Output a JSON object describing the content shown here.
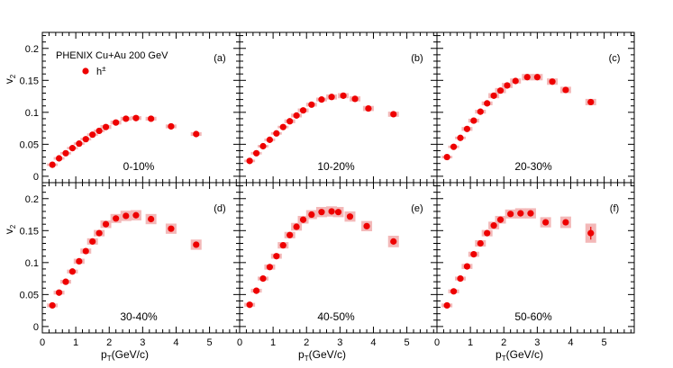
{
  "chart_data": {
    "type": "scatter",
    "title": "PHENIX Cu+Au 200 GeV",
    "legend": {
      "marker_label": "h",
      "marker_label_sup": "±",
      "placement": "top-left of panel (a)"
    },
    "xlabel": {
      "main": "p",
      "sub": "T",
      "rest": "(GeV/c)"
    },
    "ylabel": {
      "main": "v",
      "sub": "2"
    },
    "xlim": [
      0,
      5.9
    ],
    "ylim": [
      -0.01,
      0.225
    ],
    "x_ticks": [
      0,
      1,
      2,
      3,
      4,
      5
    ],
    "x_tick_labels": [
      "0",
      "1",
      "2",
      "3",
      "4",
      "5"
    ],
    "y_ticks": [
      0,
      0.05,
      0.1,
      0.15,
      0.2
    ],
    "y_tick_labels": [
      "0",
      "0.05",
      "0.1",
      "0.15",
      "0.2"
    ],
    "grid": false,
    "colors": {
      "marker": "#ee0000",
      "syst_box": "#f3b8b8",
      "frame": "#000000"
    },
    "x": [
      0.3,
      0.5,
      0.7,
      0.9,
      1.1,
      1.3,
      1.5,
      1.7,
      1.9,
      2.2,
      2.5,
      2.8,
      3.25,
      3.85,
      4.6
    ],
    "panels": [
      {
        "tag": "(a)",
        "centrality": "0-10%",
        "values": [
          0.018,
          0.028,
          0.036,
          0.044,
          0.051,
          0.058,
          0.065,
          0.071,
          0.077,
          0.084,
          0.09,
          0.091,
          0.09,
          0.078,
          0.066
        ],
        "syst": [
          0.002,
          0.002,
          0.002,
          0.002,
          0.002,
          0.002,
          0.002,
          0.002,
          0.003,
          0.003,
          0.003,
          0.003,
          0.003,
          0.003,
          0.003
        ]
      },
      {
        "tag": "(b)",
        "centrality": "10-20%",
        "values": [
          0.024,
          0.036,
          0.047,
          0.057,
          0.067,
          0.077,
          0.086,
          0.095,
          0.103,
          0.112,
          0.12,
          0.124,
          0.126,
          0.121,
          0.106,
          0.097
        ],
        "x": [
          0.3,
          0.5,
          0.7,
          0.9,
          1.1,
          1.3,
          1.5,
          1.7,
          1.9,
          2.15,
          2.45,
          2.75,
          3.1,
          3.45,
          3.85,
          4.6
        ],
        "syst": [
          0.002,
          0.002,
          0.002,
          0.002,
          0.002,
          0.002,
          0.003,
          0.003,
          0.003,
          0.003,
          0.003,
          0.004,
          0.004,
          0.004,
          0.004,
          0.004
        ]
      },
      {
        "tag": "(c)",
        "centrality": "20-30%",
        "values": [
          0.03,
          0.046,
          0.06,
          0.074,
          0.087,
          0.101,
          0.114,
          0.126,
          0.134,
          0.142,
          0.149,
          0.155,
          0.155,
          0.148,
          0.135,
          0.116
        ],
        "x": [
          0.3,
          0.5,
          0.7,
          0.9,
          1.1,
          1.3,
          1.5,
          1.7,
          1.9,
          2.1,
          2.35,
          2.7,
          3.0,
          3.45,
          3.85,
          4.6
        ],
        "syst": [
          0.002,
          0.002,
          0.002,
          0.003,
          0.003,
          0.003,
          0.003,
          0.004,
          0.004,
          0.004,
          0.004,
          0.005,
          0.005,
          0.005,
          0.005,
          0.005
        ]
      },
      {
        "tag": "(d)",
        "centrality": "30-40%",
        "values": [
          0.033,
          0.053,
          0.07,
          0.086,
          0.102,
          0.118,
          0.133,
          0.146,
          0.16,
          0.169,
          0.173,
          0.174,
          0.168,
          0.153,
          0.128
        ],
        "syst": [
          0.003,
          0.003,
          0.003,
          0.003,
          0.004,
          0.004,
          0.005,
          0.005,
          0.006,
          0.007,
          0.008,
          0.008,
          0.008,
          0.008,
          0.008
        ]
      },
      {
        "tag": "(e)",
        "centrality": "40-50%",
        "values": [
          0.034,
          0.056,
          0.075,
          0.093,
          0.11,
          0.127,
          0.143,
          0.156,
          0.167,
          0.175,
          0.179,
          0.18,
          0.179,
          0.172,
          0.157,
          0.133
        ],
        "x": [
          0.3,
          0.5,
          0.7,
          0.9,
          1.1,
          1.3,
          1.5,
          1.7,
          1.9,
          2.15,
          2.45,
          2.75,
          2.95,
          3.3,
          3.8,
          4.6
        ],
        "syst": [
          0.003,
          0.003,
          0.003,
          0.004,
          0.004,
          0.005,
          0.005,
          0.006,
          0.006,
          0.007,
          0.008,
          0.008,
          0.008,
          0.008,
          0.008,
          0.009
        ]
      },
      {
        "tag": "(f)",
        "centrality": "50-60%",
        "values": [
          0.033,
          0.055,
          0.075,
          0.094,
          0.113,
          0.13,
          0.146,
          0.158,
          0.167,
          0.176,
          0.177,
          0.177,
          0.163,
          0.163,
          0.146
        ],
        "syst": [
          0.003,
          0.003,
          0.003,
          0.004,
          0.004,
          0.005,
          0.005,
          0.006,
          0.006,
          0.007,
          0.008,
          0.008,
          0.008,
          0.009,
          0.015
        ]
      }
    ]
  }
}
